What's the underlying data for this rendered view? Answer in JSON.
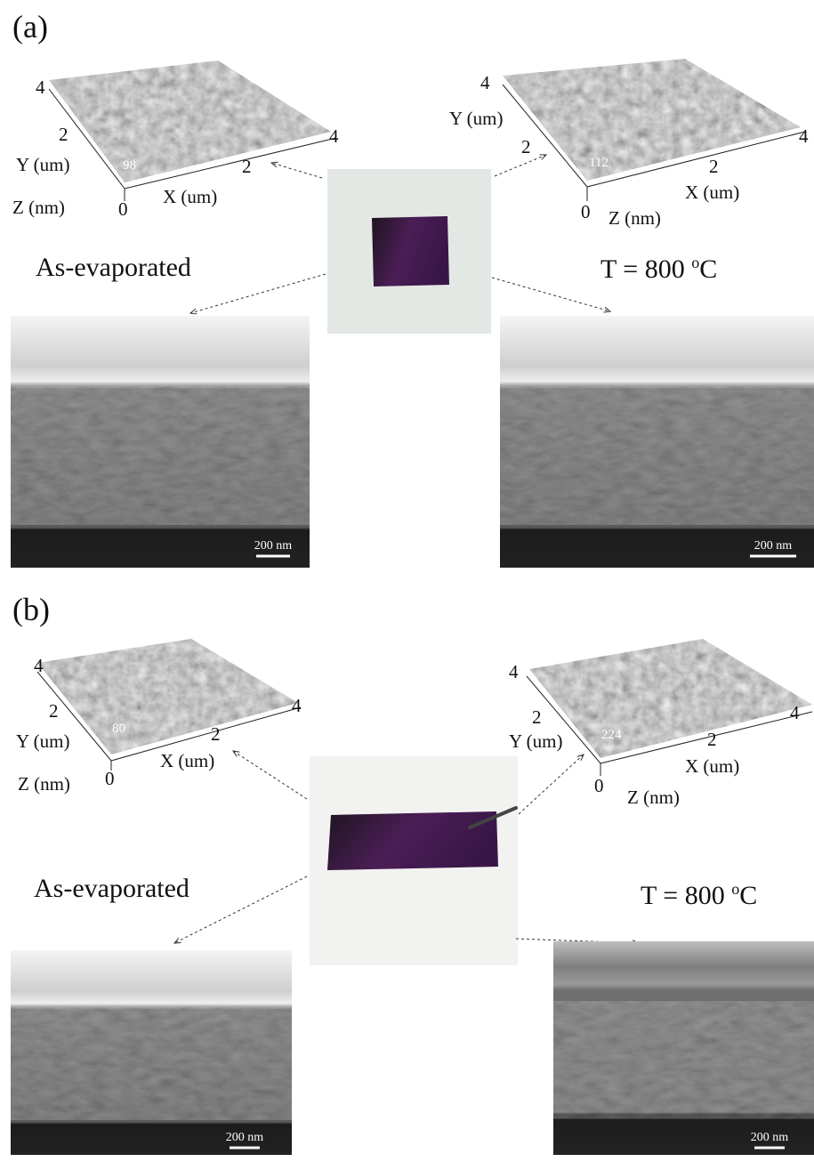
{
  "panels": [
    {
      "label": "(a)",
      "left": {
        "afm": {
          "y_axis": "Y (um)",
          "x_axis": "X (um)",
          "z_axis": "Z (nm)",
          "origin": "0",
          "y_ticks": [
            "2",
            "4"
          ],
          "x_ticks": [
            "2",
            "4"
          ],
          "z_max": "98"
        },
        "caption": {
          "text": "As-evaporated"
        },
        "scale_bar": "200 nm"
      },
      "right": {
        "afm": {
          "y_axis": "Y (um)",
          "x_axis": "X (um)",
          "z_axis": "Z (nm)",
          "origin": "0",
          "y_ticks": [
            "2",
            "4"
          ],
          "x_ticks": [
            "2",
            "4"
          ],
          "z_max": "112"
        },
        "caption": {
          "text": "T = 800 ",
          "sup": "o",
          "unit": "C"
        },
        "scale_bar": "200 nm"
      }
    },
    {
      "label": "(b)",
      "left": {
        "afm": {
          "y_axis": "Y (um)",
          "x_axis": "X (um)",
          "z_axis": "Z (nm)",
          "origin": "0",
          "y_ticks": [
            "2",
            "4"
          ],
          "x_ticks": [
            "2",
            "4"
          ],
          "z_max": "80"
        },
        "caption": {
          "text": "As-evaporated"
        },
        "scale_bar": "200 nm"
      },
      "right": {
        "afm": {
          "y_axis": "Y (um)",
          "x_axis": "X (um)",
          "z_axis": "Z (nm)",
          "origin": "0",
          "y_ticks": [
            "2",
            "4"
          ],
          "x_ticks": [
            "2",
            "4"
          ],
          "z_max": "224"
        },
        "caption": {
          "text": "T = 800 ",
          "sup": "o",
          "unit": "C"
        },
        "scale_bar": "200 nm"
      }
    }
  ]
}
